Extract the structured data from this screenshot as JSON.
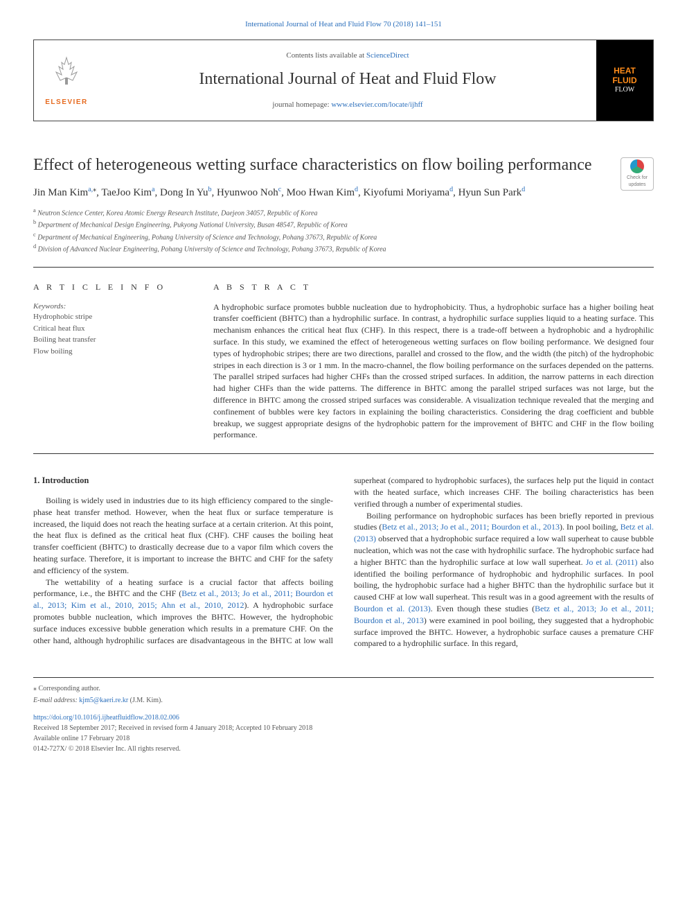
{
  "top_citation": "International Journal of Heat and Fluid Flow 70 (2018) 141–151",
  "header": {
    "publisher": "ELSEVIER",
    "contents_prefix": "Contents lists available at ",
    "contents_link": "ScienceDirect",
    "journal_name": "International Journal of Heat and Fluid Flow",
    "homepage_prefix": "journal homepage: ",
    "homepage_link": "www.elsevier.com/locate/ijhff",
    "cover_line1": "HEAT",
    "cover_line2": "FLUID",
    "cover_line3": "FLOW"
  },
  "check_updates": {
    "line1": "Check for",
    "line2": "updates"
  },
  "article": {
    "title": "Effect of heterogeneous wetting surface characteristics on flow boiling performance",
    "authors_html": "Jin Man Kim<sup>a,</sup><sup class='ast'>⁎</sup>, TaeJoo Kim<sup>a</sup>, Dong In Yu<sup>b</sup>, Hyunwoo Noh<sup>c</sup>, Moo Hwan Kim<sup>d</sup>, Kiyofumi Moriyama<sup>d</sup>, Hyun Sun Park<sup>d</sup>",
    "affiliations": [
      {
        "sup": "a",
        "text": "Neutron Science Center, Korea Atomic Energy Research Institute, Daejeon 34057, Republic of Korea"
      },
      {
        "sup": "b",
        "text": "Department of Mechanical Design Engineering, Pukyong National University, Busan 48547, Republic of Korea"
      },
      {
        "sup": "c",
        "text": "Department of Mechanical Engineering, Pohang University of Science and Technology, Pohang 37673, Republic of Korea"
      },
      {
        "sup": "d",
        "text": "Division of Advanced Nuclear Engineering, Pohang University of Science and Technology, Pohang 37673, Republic of Korea"
      }
    ]
  },
  "article_info": {
    "label": "A R T I C L E   I N F O",
    "keywords_label": "Keywords:",
    "keywords": [
      "Hydrophobic stripe",
      "Critical heat flux",
      "Boiling heat transfer",
      "Flow boiling"
    ]
  },
  "abstract": {
    "label": "A B S T R A C T",
    "text": "A hydrophobic surface promotes bubble nucleation due to hydrophobicity. Thus, a hydrophobic surface has a higher boiling heat transfer coefficient (BHTC) than a hydrophilic surface. In contrast, a hydrophilic surface supplies liquid to a heating surface. This mechanism enhances the critical heat flux (CHF). In this respect, there is a trade-off between a hydrophobic and a hydrophilic surface. In this study, we examined the effect of heterogeneous wetting surfaces on flow boiling performance. We designed four types of hydrophobic stripes; there are two directions, parallel and crossed to the flow, and the width (the pitch) of the hydrophobic stripes in each direction is 3 or 1 mm. In the macro-channel, the flow boiling performance on the surfaces depended on the patterns. The parallel striped surfaces had higher CHFs than the crossed striped surfaces. In addition, the narrow patterns in each direction had higher CHFs than the wide patterns. The difference in BHTC among the parallel striped surfaces was not large, but the difference in BHTC among the crossed striped surfaces was considerable. A visualization technique revealed that the merging and confinement of bubbles were key factors in explaining the boiling characteristics. Considering the drag coefficient and bubble breakup, we suggest appropriate designs of the hydrophobic pattern for the improvement of BHTC and CHF in the flow boiling performance."
  },
  "body": {
    "section_number": "1.",
    "section_title": "Introduction",
    "col1_p1_pre": "Boiling is widely used in industries due to its high efficiency compared to the single-phase heat transfer method. However, when the heat flux or surface temperature is increased, the liquid does not reach the heating surface at a certain criterion. At this point, the heat flux is defined as the critical heat flux (CHF). CHF causes the boiling heat transfer coefficient (BHTC) to drastically decrease due to a vapor film which covers the heating surface. Therefore, it is important to increase the BHTC and CHF for the safety and efficiency of the system.",
    "col1_p2_a": "The wettability of a heating surface is a crucial factor that affects boiling performance, i.e., the BHTC and the CHF (",
    "col1_p2_refs": "Betz et al., 2013; Jo et al., 2011; Bourdon et al., 2013; Kim et al., 2010, 2015; Ahn et al., 2010, 2012",
    "col1_p2_b": "). A hydrophobic surface promotes bubble nucleation, which improves the BHTC. However, the hydrophobic surface induces excessive bubble generation which results in a premature CHF. On the other hand, although hydrophilic surfaces are disadvantageous in the BHTC at low wall superheat (compared to hydrophobic surfaces), the ",
    "col2_p1": "surfaces help put the liquid in contact with the heated surface, which increases CHF. The boiling characteristics has been verified through a number of experimental studies.",
    "col2_p2_a": "Boiling performance on hydrophobic surfaces has been briefly reported in previous studies (",
    "col2_p2_refs1": "Betz et al., 2013; Jo et al., 2011; Bourdon et al., 2013",
    "col2_p2_b": "). In pool boiling, ",
    "col2_p2_ref2": "Betz et al. (2013)",
    "col2_p2_c": " observed that a hydrophobic surface required a low wall superheat to cause bubble nucleation, which was not the case with hydrophilic surface. The hydrophobic surface had a higher BHTC than the hydrophilic surface at low wall superheat. ",
    "col2_p2_ref3": "Jo et al. (2011)",
    "col2_p2_d": " also identified the boiling performance of hydrophobic and hydrophilic surfaces. In pool boiling, the hydrophobic surface had a higher BHTC than the hydrophilic surface but it caused CHF at low wall superheat. This result was in a good agreement with the results of ",
    "col2_p2_ref4": "Bourdon et al. (2013)",
    "col2_p2_e": ". Even though these studies (",
    "col2_p2_refs5": "Betz et al., 2013; Jo et al., 2011; Bourdon et al., 2013",
    "col2_p2_f": ") were examined in pool boiling, they suggested that a hydrophobic surface improved the BHTC. However, a hydrophobic surface causes a premature CHF compared to a hydrophilic surface. In this regard,"
  },
  "footer": {
    "corr_label": "⁎ Corresponding author.",
    "email_label": "E-mail address: ",
    "email": "kjm5@kaeri.re.kr",
    "email_tail": " (J.M. Kim).",
    "doi": "https://doi.org/10.1016/j.ijheatfluidflow.2018.02.006",
    "received": "Received 18 September 2017; Received in revised form 4 January 2018; Accepted 10 February 2018",
    "online": "Available online 17 February 2018",
    "copyright": "0142-727X/ © 2018 Elsevier Inc. All rights reserved."
  },
  "colors": {
    "link": "#2a6ebb",
    "elsevier_orange": "#e66a1f",
    "cover_orange": "#ff8c1a"
  }
}
